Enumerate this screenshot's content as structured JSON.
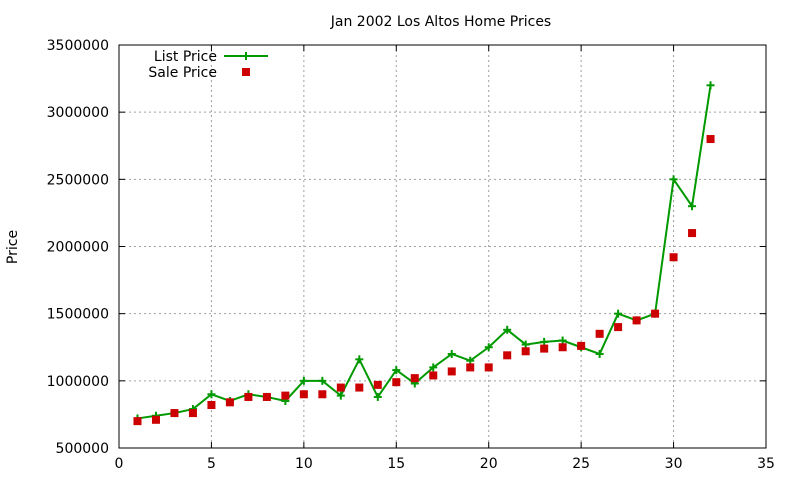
{
  "chart_data": {
    "type": "line",
    "title": "Jan 2002 Los Altos Home Prices",
    "xlabel": "",
    "ylabel": "Price",
    "xlim": [
      0,
      35
    ],
    "ylim": [
      500000,
      3500000
    ],
    "xticks": [
      0,
      5,
      10,
      15,
      20,
      25,
      30,
      35
    ],
    "yticks": [
      500000,
      1000000,
      1500000,
      2000000,
      2500000,
      3000000,
      3500000
    ],
    "grid": true,
    "legend_position": "top-left",
    "series": [
      {
        "name": "List Price",
        "style": "line-plus",
        "color": "#009900",
        "x": [
          1,
          2,
          3,
          4,
          5,
          6,
          7,
          8,
          9,
          10,
          11,
          12,
          13,
          14,
          15,
          16,
          17,
          18,
          19,
          20,
          21,
          22,
          23,
          24,
          25,
          26,
          27,
          28,
          29,
          30,
          31,
          32
        ],
        "values": [
          720000,
          740000,
          760000,
          790000,
          900000,
          850000,
          900000,
          880000,
          850000,
          1000000,
          1000000,
          890000,
          1160000,
          880000,
          1080000,
          980000,
          1100000,
          1200000,
          1150000,
          1250000,
          1380000,
          1270000,
          1290000,
          1300000,
          1250000,
          1200000,
          1500000,
          1450000,
          1500000,
          2500000,
          2300000,
          3200000
        ]
      },
      {
        "name": "Sale Price",
        "style": "square-markers",
        "color": "#cc0000",
        "x": [
          1,
          2,
          3,
          4,
          5,
          6,
          7,
          8,
          9,
          10,
          11,
          12,
          13,
          14,
          15,
          16,
          17,
          18,
          19,
          20,
          21,
          22,
          23,
          24,
          25,
          26,
          27,
          28,
          29,
          30,
          31,
          32
        ],
        "values": [
          700000,
          710000,
          760000,
          760000,
          820000,
          840000,
          880000,
          880000,
          890000,
          900000,
          900000,
          950000,
          950000,
          970000,
          990000,
          1020000,
          1040000,
          1070000,
          1100000,
          1100000,
          1190000,
          1220000,
          1240000,
          1250000,
          1260000,
          1350000,
          1400000,
          1450000,
          1500000,
          1920000,
          2100000,
          2800000
        ]
      }
    ]
  }
}
